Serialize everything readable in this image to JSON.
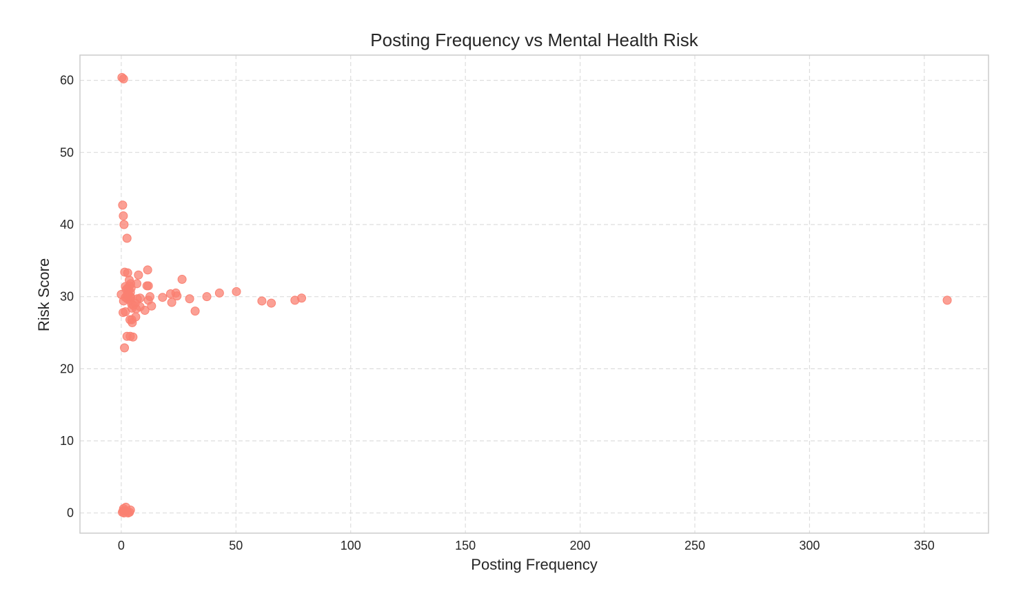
{
  "chart_data": {
    "type": "scatter",
    "title": "Posting Frequency vs Mental Health Risk",
    "xlabel": "Posting Frequency",
    "ylabel": "Risk Score",
    "xlim": [
      -18,
      378
    ],
    "ylim": [
      -2.8,
      63.5
    ],
    "xticks": [
      0,
      50,
      100,
      150,
      200,
      250,
      300,
      350
    ],
    "yticks": [
      0,
      10,
      20,
      30,
      40,
      50,
      60
    ],
    "grid": true,
    "legend": "none",
    "point_color": "#fa8072",
    "points": [
      [
        0.3,
        60.4
      ],
      [
        1.0,
        60.2
      ],
      [
        0.6,
        42.7
      ],
      [
        0.9,
        41.2
      ],
      [
        1.2,
        40.0
      ],
      [
        2.5,
        38.1
      ],
      [
        1.5,
        33.4
      ],
      [
        2.8,
        33.3
      ],
      [
        11.5,
        33.7
      ],
      [
        7.5,
        33.0
      ],
      [
        26.5,
        32.4
      ],
      [
        3.5,
        32.3
      ],
      [
        1.8,
        31.4
      ],
      [
        2.2,
        31.0
      ],
      [
        2.8,
        31.2
      ],
      [
        3.2,
        30.8
      ],
      [
        3.6,
        31.5
      ],
      [
        4.0,
        30.6
      ],
      [
        4.3,
        31.2
      ],
      [
        4.1,
        31.8
      ],
      [
        3.0,
        30.4
      ],
      [
        2.5,
        30.2
      ],
      [
        3.9,
        30.0
      ],
      [
        0.0,
        30.3
      ],
      [
        1.0,
        29.4
      ],
      [
        1.8,
        29.9
      ],
      [
        2.6,
        29.7
      ],
      [
        3.8,
        29.5
      ],
      [
        4.2,
        29.9
      ],
      [
        6.8,
        31.8
      ],
      [
        11.2,
        31.5
      ],
      [
        11.8,
        31.5
      ],
      [
        8.2,
        29.8
      ],
      [
        7.0,
        29.7
      ],
      [
        12.5,
        30.0
      ],
      [
        11.8,
        29.5
      ],
      [
        18.0,
        29.9
      ],
      [
        21.5,
        30.4
      ],
      [
        23.8,
        30.5
      ],
      [
        24.3,
        30.1
      ],
      [
        22.0,
        29.2
      ],
      [
        29.8,
        29.7
      ],
      [
        37.3,
        30.0
      ],
      [
        42.8,
        30.5
      ],
      [
        50.2,
        30.7
      ],
      [
        61.3,
        29.4
      ],
      [
        65.4,
        29.1
      ],
      [
        75.7,
        29.5
      ],
      [
        78.6,
        29.8
      ],
      [
        360.0,
        29.5
      ],
      [
        4.5,
        29.0
      ],
      [
        5.2,
        28.8
      ],
      [
        6.1,
        29.1
      ],
      [
        4.7,
        28.4
      ],
      [
        6.5,
        28.3
      ],
      [
        8.2,
        28.6
      ],
      [
        10.3,
        28.1
      ],
      [
        13.2,
        28.7
      ],
      [
        32.2,
        28.0
      ],
      [
        0.8,
        27.8
      ],
      [
        1.8,
        27.9
      ],
      [
        6.3,
        27.2
      ],
      [
        3.8,
        26.8
      ],
      [
        4.8,
        26.4
      ],
      [
        4.6,
        26.8
      ],
      [
        2.5,
        24.5
      ],
      [
        3.9,
        24.5
      ],
      [
        5.1,
        24.4
      ],
      [
        1.4,
        22.9
      ],
      [
        0.5,
        0.1
      ],
      [
        1.0,
        0.6
      ],
      [
        1.5,
        0.3
      ],
      [
        2.0,
        0.8
      ],
      [
        2.5,
        0.2
      ],
      [
        3.0,
        0.0
      ],
      [
        4.0,
        0.4
      ],
      [
        1.2,
        0.0
      ],
      [
        3.6,
        0.1
      ],
      [
        0.8,
        0.3
      ]
    ]
  }
}
